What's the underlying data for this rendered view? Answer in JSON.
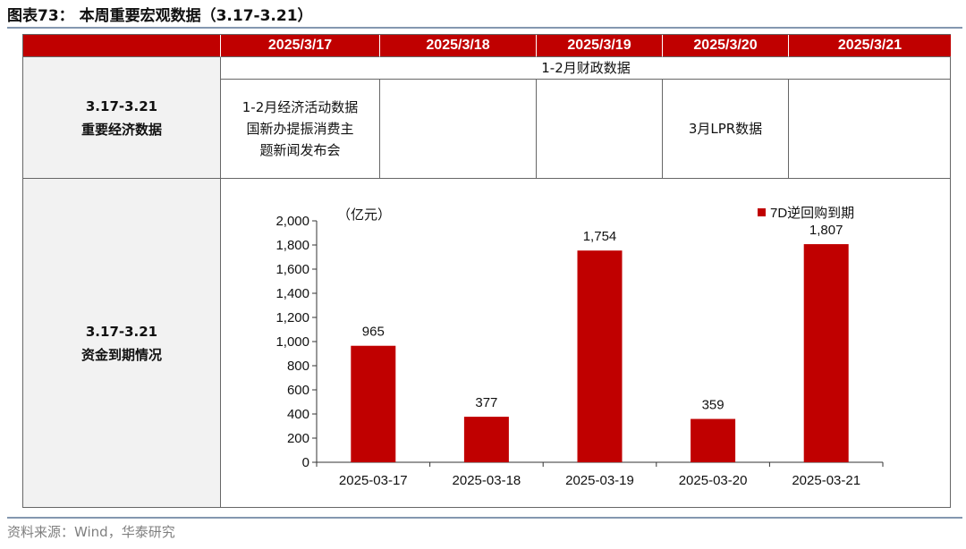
{
  "figure": {
    "title": "图表73： 本周重要宏观数据（3.17-3.21）",
    "source": "资料来源：Wind，华泰研究"
  },
  "table": {
    "dates": [
      "2025/3/17",
      "2025/3/18",
      "2025/3/19",
      "2025/3/20",
      "2025/3/21"
    ],
    "row1_label": [
      "3.17-3.21",
      "重要经济数据"
    ],
    "row1_span_text": "1-2月财政数据",
    "row1_cells": [
      [
        "1-2月经济活动数据",
        "国新办提振消费主",
        "题新闻发布会"
      ],
      [],
      [],
      [
        "3月LPR数据"
      ],
      []
    ],
    "row2_label": [
      "3.17-3.21",
      "资金到期情况"
    ]
  },
  "chart_data": {
    "type": "bar",
    "title": "",
    "unit_label": "（亿元）",
    "xlabel": "",
    "ylabel": "",
    "categories": [
      "2025-03-17",
      "2025-03-18",
      "2025-03-19",
      "2025-03-20",
      "2025-03-21"
    ],
    "series": [
      {
        "name": "7D逆回购到期",
        "values": [
          965,
          377,
          1754,
          359,
          1807
        ],
        "color": "#c00000"
      }
    ],
    "data_labels": [
      "965",
      "377",
      "1,754",
      "359",
      "1,807"
    ],
    "ylim": [
      0,
      2000
    ],
    "yticks": [
      0,
      200,
      400,
      600,
      800,
      1000,
      1200,
      1400,
      1600,
      1800,
      2000
    ],
    "ytick_labels": [
      "0",
      "200",
      "400",
      "600",
      "800",
      "1,000",
      "1,200",
      "1,400",
      "1,600",
      "1,800",
      "2,000"
    ],
    "grid": false,
    "legend_position": "top-right"
  }
}
